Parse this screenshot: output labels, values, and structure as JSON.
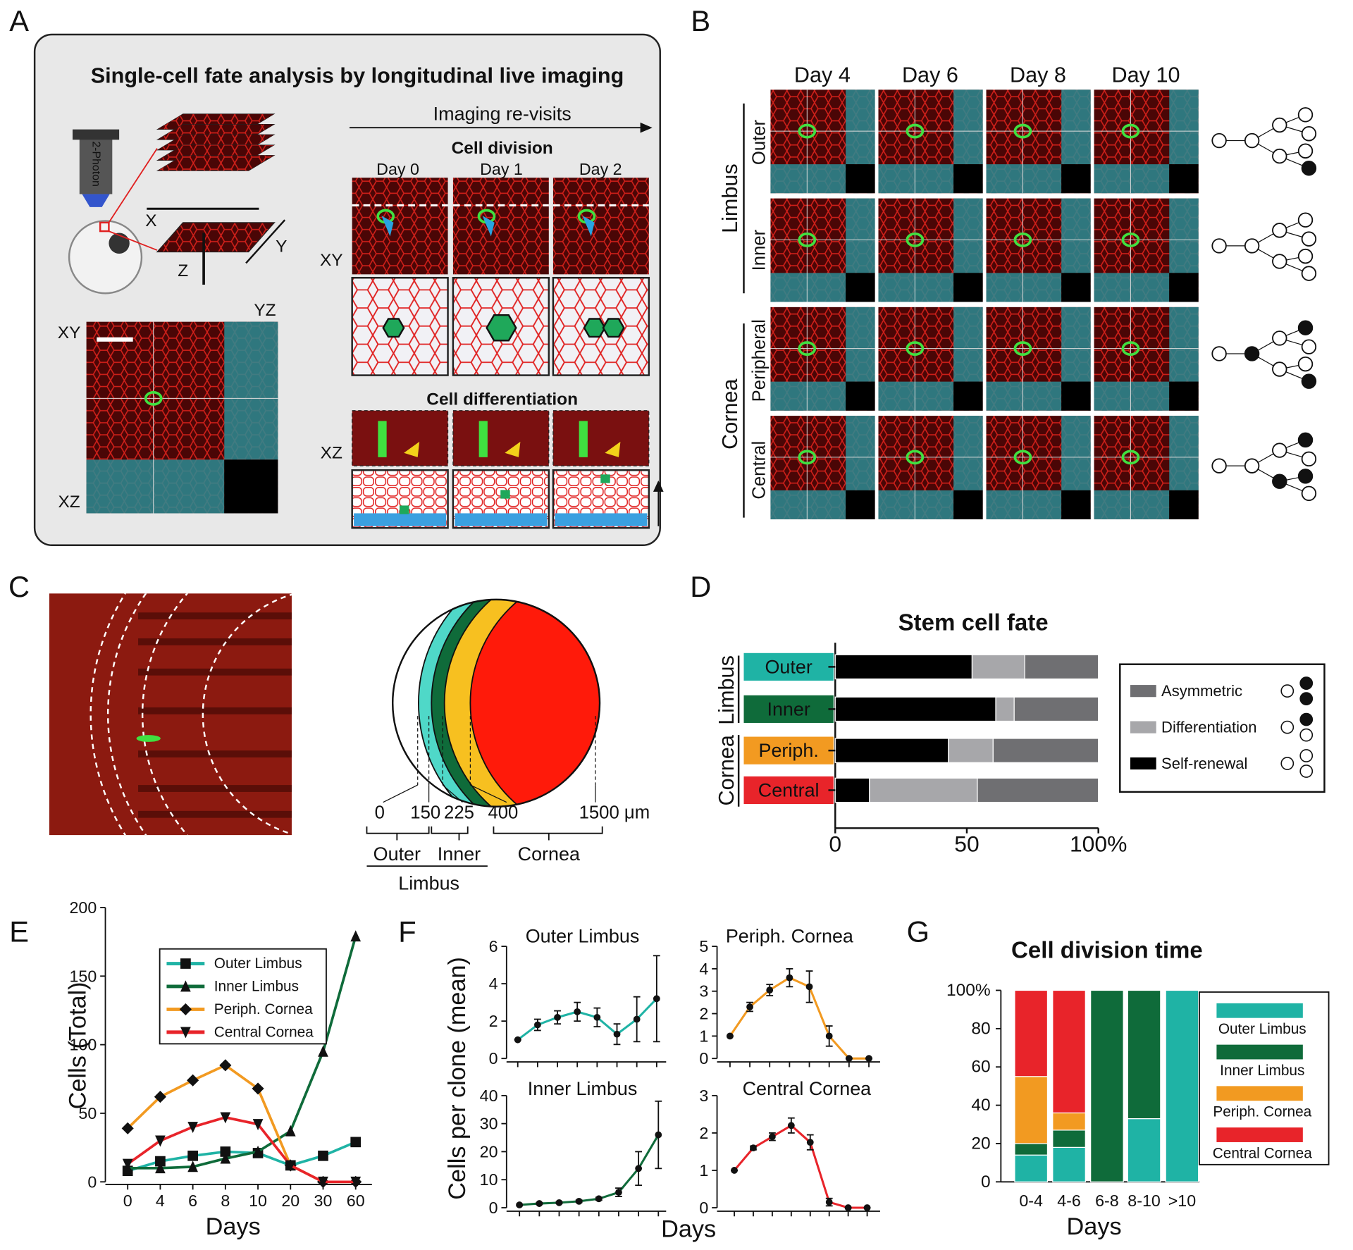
{
  "panel_labels": [
    "A",
    "B",
    "C",
    "D",
    "E",
    "F",
    "G"
  ],
  "panel_a": {
    "title": "Single-cell fate analysis by longitudinal live imaging",
    "objective": "2-Photon",
    "axes": [
      "X",
      "Y",
      "Z"
    ],
    "views": [
      "XY",
      "YZ",
      "XZ"
    ],
    "revisits": "Imaging re-visits",
    "division": "Cell division",
    "days": [
      "Day 0",
      "Day 1",
      "Day 2"
    ],
    "differentiation": "Cell differentiation"
  },
  "panel_b": {
    "days": [
      "Day 4",
      "Day 6",
      "Day 8",
      "Day 10"
    ],
    "groups": [
      {
        "name": "Limbus",
        "rows": [
          "Outer",
          "Inner"
        ]
      },
      {
        "name": "Cornea",
        "rows": [
          "Peripheral",
          "Central"
        ]
      }
    ]
  },
  "panel_c": {
    "positions": [
      "0",
      "150",
      "225",
      "400",
      "1500 μm"
    ],
    "regions": [
      "Outer",
      "Inner",
      "Cornea"
    ],
    "group": "Limbus"
  },
  "chart_data": [
    {
      "type": "bar",
      "orientation": "horizontal",
      "stacked": true,
      "title": "Stem cell fate",
      "categories": [
        "Outer",
        "Inner",
        "Periph.",
        "Central"
      ],
      "category_colors": [
        "#1fb3a5",
        "#0f6b3a",
        "#f29a21",
        "#e8242a"
      ],
      "group_labels": [
        "Limbus",
        "Cornea"
      ],
      "series": [
        {
          "name": "Self-renewal",
          "color": "#000000",
          "values": [
            52,
            61,
            43,
            13
          ]
        },
        {
          "name": "Differentiation",
          "color": "#a7a7aa",
          "values": [
            20,
            7,
            17,
            41
          ]
        },
        {
          "name": "Asymmetric",
          "color": "#6f6f72",
          "values": [
            28,
            32,
            40,
            46
          ]
        }
      ],
      "xlim": [
        0,
        100
      ],
      "xticks": [
        0,
        50,
        {
          "value": 100,
          "label": "100%"
        }
      ]
    },
    {
      "type": "line",
      "categories": [
        "0",
        "4",
        "6",
        "8",
        "10",
        "20",
        "30",
        "60"
      ],
      "series": [
        {
          "name": "Outer Limbus",
          "color": "#1fb3a5",
          "marker": "square",
          "values": [
            8,
            15,
            19,
            22,
            21,
            12,
            19,
            29
          ]
        },
        {
          "name": "Inner Limbus",
          "color": "#0f6b3a",
          "marker": "triangle",
          "values": [
            10,
            10,
            11,
            17,
            22,
            37,
            95,
            179
          ]
        },
        {
          "name": "Periph. Cornea",
          "color": "#f29a21",
          "marker": "diamond",
          "values": [
            39,
            62,
            74,
            85,
            68,
            12,
            0,
            0
          ]
        },
        {
          "name": "Central Cornea",
          "color": "#e8242a",
          "marker": "triangle-down",
          "values": [
            13,
            30,
            40,
            47,
            42,
            12,
            0,
            0
          ]
        }
      ],
      "ylim": [
        0,
        200
      ],
      "yticks": [
        0,
        50,
        100,
        150,
        200
      ],
      "ylabel": "Cells  (Total)",
      "xlabel": "Days"
    },
    {
      "type": "line",
      "title": "Outer Limbus",
      "categories": [
        null,
        null,
        null,
        null,
        null,
        null,
        null,
        null
      ],
      "series": [
        {
          "name": null,
          "color": "#1fb3a5",
          "values": [
            1,
            1.8,
            2.2,
            2.5,
            2.2,
            1.3,
            2.1,
            3.2
          ],
          "errors": [
            0,
            0.3,
            0.35,
            0.5,
            0.5,
            0.55,
            1.2,
            2.3
          ]
        }
      ],
      "ylim": [
        0,
        6
      ],
      "yticks": [
        0,
        2,
        4,
        6
      ],
      "ylabel": "Cells per clone (mean)",
      "xlabel": "Days"
    },
    {
      "type": "line",
      "title": "Periph. Cornea",
      "categories": [
        null,
        null,
        null,
        null,
        null,
        null,
        null,
        null
      ],
      "series": [
        {
          "name": null,
          "color": "#f29a21",
          "values": [
            1,
            2.3,
            3.05,
            3.6,
            3.2,
            1.0,
            0,
            0
          ],
          "errors": [
            0,
            0.2,
            0.25,
            0.4,
            0.7,
            0.45,
            0,
            0
          ]
        }
      ],
      "ylim": [
        0,
        5
      ],
      "yticks": [
        0,
        1,
        2,
        3,
        4,
        5
      ]
    },
    {
      "type": "line",
      "title": "Inner Limbus",
      "categories": [
        null,
        null,
        null,
        null,
        null,
        null,
        null,
        null
      ],
      "series": [
        {
          "name": null,
          "color": "#0f6b3a",
          "values": [
            1,
            1.5,
            1.8,
            2.3,
            3.2,
            5.5,
            14,
            26
          ],
          "errors": [
            0.3,
            0.3,
            0.3,
            0.4,
            0.5,
            1.5,
            6,
            12
          ]
        }
      ],
      "ylim": [
        0,
        40
      ],
      "yticks": [
        0,
        10,
        20,
        30,
        40
      ]
    },
    {
      "type": "line",
      "title": "Central Cornea",
      "categories": [
        null,
        null,
        null,
        null,
        null,
        null,
        null,
        null
      ],
      "series": [
        {
          "name": null,
          "color": "#e8242a",
          "values": [
            1,
            1.6,
            1.9,
            2.2,
            1.75,
            0.15,
            0,
            0
          ],
          "errors": [
            0,
            0.05,
            0.1,
            0.2,
            0.2,
            0.1,
            0,
            0
          ]
        }
      ],
      "ylim": [
        0,
        3
      ],
      "yticks": [
        0,
        1,
        2,
        3
      ]
    },
    {
      "type": "bar",
      "stacked": true,
      "title": "Cell division time",
      "categories": [
        "0-4",
        "4-6",
        "6-8",
        "8-10",
        ">10"
      ],
      "series": [
        {
          "name": "Outer Limbus",
          "color": "#1fb3a5",
          "values": [
            14,
            18,
            0,
            33,
            100
          ]
        },
        {
          "name": "Inner Limbus",
          "color": "#0f6b3a",
          "values": [
            6,
            9,
            100,
            67,
            0
          ]
        },
        {
          "name": "Periph. Cornea",
          "color": "#f29a21",
          "values": [
            35,
            9,
            0,
            0,
            0
          ]
        },
        {
          "name": "Central Cornea",
          "color": "#e8242a",
          "values": [
            45,
            64,
            0,
            0,
            0
          ]
        }
      ],
      "ylim": [
        0,
        100
      ],
      "yticks": [
        0,
        20,
        40,
        60,
        80,
        {
          "value": 100,
          "label": "100%"
        }
      ],
      "xlabel": "Days"
    }
  ]
}
